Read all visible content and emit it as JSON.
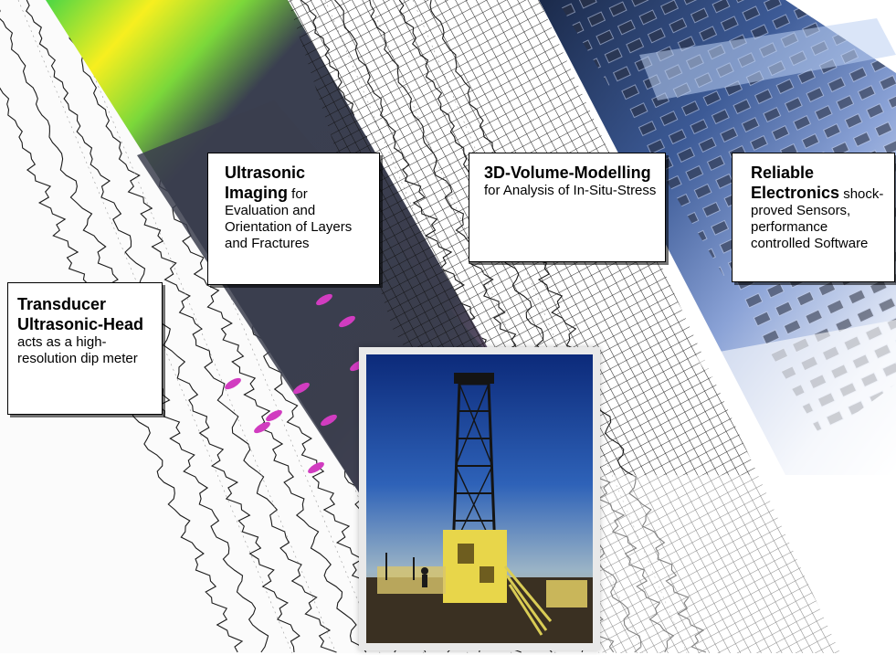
{
  "callouts": {
    "imaging": {
      "head": "Ultrasonic Imaging",
      "rest": " for Evaluation and Orientation of Layers and Fractures"
    },
    "modelling": {
      "head": "3D-Volume-Modelling",
      "rest": " for Analysis of In-Situ-Stress"
    },
    "electronics": {
      "head": "Reliable Electronics",
      "rest": " shock-proved Sensors, performance controlled Software"
    },
    "transducer": {
      "head": "Transducer Ultrasonic-Head",
      "rest": " acts as a high-resolution dip meter"
    }
  },
  "images": {
    "seismic": "seismic-trace-strip",
    "imaging": "ultrasonic-image-strip",
    "mesh": "3d-mesh-cylinder",
    "electronics": "circuit-board-photo",
    "photo": "drilling-rig-photo"
  }
}
